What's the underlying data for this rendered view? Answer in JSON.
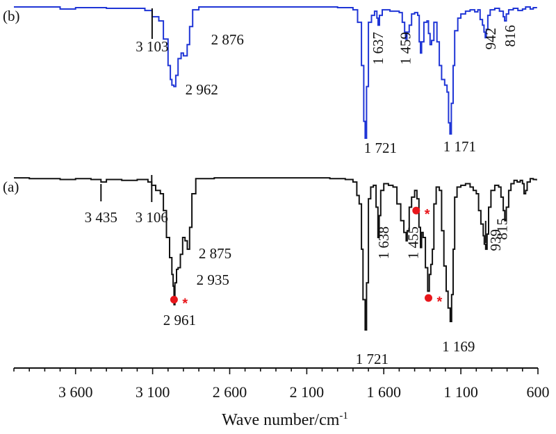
{
  "chart_data": {
    "type": "line",
    "xlabel": "Wave number/cm",
    "xlabel_sup": "-1",
    "x_reversed": true,
    "xlim": [
      4000,
      600
    ],
    "xticks": [
      {
        "value": 3600,
        "label": "3 600"
      },
      {
        "value": 3100,
        "label": "3 100"
      },
      {
        "value": 2600,
        "label": "2 600"
      },
      {
        "value": 2100,
        "label": "2 100"
      },
      {
        "value": 1600,
        "label": "1 600"
      },
      {
        "value": 1100,
        "label": "1 100"
      },
      {
        "value": 600,
        "label": "600"
      }
    ],
    "colors": {
      "b": "#1f35d6",
      "a": "#111111",
      "marker": "#e8161b"
    },
    "series": [
      {
        "name": "(b)",
        "key": "b",
        "ylim": [
          0,
          1
        ],
        "points": [
          [
            4000,
            0.97
          ],
          [
            3750,
            0.97
          ],
          [
            3700,
            0.955
          ],
          [
            3600,
            0.965
          ],
          [
            3400,
            0.96
          ],
          [
            3250,
            0.96
          ],
          [
            3150,
            0.945
          ],
          [
            3103,
            0.9
          ],
          [
            3060,
            0.87
          ],
          [
            3030,
            0.74
          ],
          [
            3000,
            0.55
          ],
          [
            2985,
            0.45
          ],
          [
            2975,
            0.41
          ],
          [
            2962,
            0.4
          ],
          [
            2950,
            0.48
          ],
          [
            2935,
            0.6
          ],
          [
            2915,
            0.64
          ],
          [
            2900,
            0.62
          ],
          [
            2876,
            0.7
          ],
          [
            2860,
            0.83
          ],
          [
            2840,
            0.95
          ],
          [
            2800,
            0.97
          ],
          [
            2200,
            0.97
          ],
          [
            1900,
            0.965
          ],
          [
            1800,
            0.95
          ],
          [
            1770,
            0.86
          ],
          [
            1745,
            0.55
          ],
          [
            1730,
            0.15
          ],
          [
            1721,
            0.03
          ],
          [
            1712,
            0.4
          ],
          [
            1700,
            0.86
          ],
          [
            1680,
            0.91
          ],
          [
            1660,
            0.94
          ],
          [
            1645,
            0.89
          ],
          [
            1637,
            0.84
          ],
          [
            1628,
            0.91
          ],
          [
            1610,
            0.95
          ],
          [
            1560,
            0.94
          ],
          [
            1500,
            0.93
          ],
          [
            1480,
            0.86
          ],
          [
            1465,
            0.79
          ],
          [
            1459,
            0.74
          ],
          [
            1450,
            0.79
          ],
          [
            1435,
            0.84
          ],
          [
            1420,
            0.92
          ],
          [
            1400,
            0.93
          ],
          [
            1380,
            0.91
          ],
          [
            1370,
            0.72
          ],
          [
            1362,
            0.64
          ],
          [
            1355,
            0.72
          ],
          [
            1340,
            0.86
          ],
          [
            1320,
            0.87
          ],
          [
            1310,
            0.78
          ],
          [
            1300,
            0.7
          ],
          [
            1290,
            0.73
          ],
          [
            1275,
            0.86
          ],
          [
            1255,
            0.72
          ],
          [
            1240,
            0.55
          ],
          [
            1225,
            0.45
          ],
          [
            1205,
            0.41
          ],
          [
            1190,
            0.36
          ],
          [
            1180,
            0.14
          ],
          [
            1171,
            0.06
          ],
          [
            1162,
            0.28
          ],
          [
            1150,
            0.55
          ],
          [
            1140,
            0.8
          ],
          [
            1120,
            0.89
          ],
          [
            1100,
            0.92
          ],
          [
            1070,
            0.94
          ],
          [
            1040,
            0.95
          ],
          [
            1010,
            0.935
          ],
          [
            990,
            0.95
          ],
          [
            975,
            0.88
          ],
          [
            960,
            0.84
          ],
          [
            950,
            0.79
          ],
          [
            942,
            0.75
          ],
          [
            935,
            0.81
          ],
          [
            925,
            0.91
          ],
          [
            910,
            0.95
          ],
          [
            880,
            0.96
          ],
          [
            850,
            0.94
          ],
          [
            825,
            0.9
          ],
          [
            816,
            0.87
          ],
          [
            805,
            0.92
          ],
          [
            790,
            0.95
          ],
          [
            760,
            0.96
          ],
          [
            730,
            0.945
          ],
          [
            700,
            0.955
          ],
          [
            680,
            0.97
          ],
          [
            650,
            0.955
          ],
          [
            630,
            0.965
          ],
          [
            610,
            0.96
          ]
        ]
      },
      {
        "name": "(a)",
        "key": "a",
        "ylim": [
          0,
          1
        ],
        "points": [
          [
            4000,
            0.975
          ],
          [
            3900,
            0.97
          ],
          [
            3800,
            0.97
          ],
          [
            3700,
            0.965
          ],
          [
            3600,
            0.97
          ],
          [
            3500,
            0.965
          ],
          [
            3435,
            0.95
          ],
          [
            3400,
            0.965
          ],
          [
            3300,
            0.96
          ],
          [
            3200,
            0.965
          ],
          [
            3130,
            0.95
          ],
          [
            3106,
            0.93
          ],
          [
            3080,
            0.9
          ],
          [
            3050,
            0.88
          ],
          [
            3030,
            0.78
          ],
          [
            3010,
            0.62
          ],
          [
            2990,
            0.5
          ],
          [
            2975,
            0.4
          ],
          [
            2967,
            0.33
          ],
          [
            2961,
            0.22
          ],
          [
            2955,
            0.35
          ],
          [
            2945,
            0.43
          ],
          [
            2935,
            0.44
          ],
          [
            2920,
            0.52
          ],
          [
            2905,
            0.62
          ],
          [
            2890,
            0.6
          ],
          [
            2875,
            0.55
          ],
          [
            2860,
            0.68
          ],
          [
            2845,
            0.88
          ],
          [
            2820,
            0.97
          ],
          [
            2700,
            0.975
          ],
          [
            2400,
            0.975
          ],
          [
            2100,
            0.975
          ],
          [
            1950,
            0.97
          ],
          [
            1850,
            0.965
          ],
          [
            1800,
            0.95
          ],
          [
            1775,
            0.87
          ],
          [
            1760,
            0.82
          ],
          [
            1745,
            0.55
          ],
          [
            1735,
            0.25
          ],
          [
            1721,
            0.07
          ],
          [
            1712,
            0.35
          ],
          [
            1700,
            0.85
          ],
          [
            1685,
            0.92
          ],
          [
            1668,
            0.93
          ],
          [
            1650,
            0.8
          ],
          [
            1638,
            0.62
          ],
          [
            1630,
            0.75
          ],
          [
            1620,
            0.9
          ],
          [
            1600,
            0.94
          ],
          [
            1570,
            0.93
          ],
          [
            1540,
            0.92
          ],
          [
            1515,
            0.82
          ],
          [
            1490,
            0.72
          ],
          [
            1470,
            0.65
          ],
          [
            1455,
            0.6
          ],
          [
            1448,
            0.66
          ],
          [
            1435,
            0.8
          ],
          [
            1420,
            0.86
          ],
          [
            1400,
            0.9
          ],
          [
            1385,
            0.85
          ],
          [
            1372,
            0.68
          ],
          [
            1362,
            0.56
          ],
          [
            1355,
            0.65
          ],
          [
            1345,
            0.62
          ],
          [
            1330,
            0.44
          ],
          [
            1315,
            0.3
          ],
          [
            1305,
            0.4
          ],
          [
            1295,
            0.46
          ],
          [
            1285,
            0.55
          ],
          [
            1275,
            0.82
          ],
          [
            1260,
            0.92
          ],
          [
            1240,
            0.9
          ],
          [
            1225,
            0.66
          ],
          [
            1210,
            0.45
          ],
          [
            1195,
            0.3
          ],
          [
            1183,
            0.2
          ],
          [
            1169,
            0.12
          ],
          [
            1160,
            0.28
          ],
          [
            1150,
            0.55
          ],
          [
            1140,
            0.86
          ],
          [
            1125,
            0.92
          ],
          [
            1100,
            0.93
          ],
          [
            1070,
            0.94
          ],
          [
            1040,
            0.92
          ],
          [
            1020,
            0.9
          ],
          [
            1000,
            0.88
          ],
          [
            985,
            0.78
          ],
          [
            970,
            0.7
          ],
          [
            955,
            0.63
          ],
          [
            948,
            0.58
          ],
          [
            939,
            0.55
          ],
          [
            930,
            0.64
          ],
          [
            920,
            0.8
          ],
          [
            905,
            0.9
          ],
          [
            880,
            0.93
          ],
          [
            855,
            0.92
          ],
          [
            840,
            0.86
          ],
          [
            825,
            0.78
          ],
          [
            815,
            0.72
          ],
          [
            805,
            0.8
          ],
          [
            790,
            0.9
          ],
          [
            775,
            0.94
          ],
          [
            755,
            0.96
          ],
          [
            735,
            0.95
          ],
          [
            715,
            0.96
          ],
          [
            700,
            0.94
          ],
          [
            690,
            0.88
          ],
          [
            680,
            0.9
          ],
          [
            670,
            0.95
          ],
          [
            650,
            0.97
          ],
          [
            630,
            0.965
          ],
          [
            610,
            0.96
          ]
        ]
      }
    ],
    "peak_labels": [
      {
        "series": "b",
        "text": "3 103",
        "x": 3103,
        "rotate": false,
        "leader": true
      },
      {
        "series": "b",
        "text": "2 876",
        "x": 2876,
        "rotate": false,
        "leader": false
      },
      {
        "series": "b",
        "text": "2 962",
        "x": 2962,
        "rotate": false,
        "leader": false
      },
      {
        "series": "b",
        "text": "1 637",
        "x": 1637,
        "rotate": true,
        "leader": false
      },
      {
        "series": "b",
        "text": "1 459",
        "x": 1459,
        "rotate": true,
        "leader": false
      },
      {
        "series": "b",
        "text": "942",
        "x": 942,
        "rotate": true,
        "leader": false
      },
      {
        "series": "b",
        "text": "816",
        "x": 816,
        "rotate": true,
        "leader": false
      },
      {
        "series": "b",
        "text": "1 721",
        "x": 1721,
        "rotate": false,
        "leader": false
      },
      {
        "series": "b",
        "text": "1 171",
        "x": 1171,
        "rotate": false,
        "leader": false
      },
      {
        "series": "a",
        "text": "3 435",
        "x": 3435,
        "rotate": false,
        "leader": true
      },
      {
        "series": "a",
        "text": "3 106",
        "x": 3106,
        "rotate": false,
        "leader": true
      },
      {
        "series": "a",
        "text": "2 875",
        "x": 2875,
        "rotate": false,
        "leader": false
      },
      {
        "series": "a",
        "text": "2 935",
        "x": 2935,
        "rotate": false,
        "leader": false
      },
      {
        "series": "a",
        "text": "2 961",
        "x": 2961,
        "rotate": false,
        "leader": false
      },
      {
        "series": "a",
        "text": "1 638",
        "x": 1638,
        "rotate": true,
        "leader": false
      },
      {
        "series": "a",
        "text": "1 455",
        "x": 1455,
        "rotate": true,
        "leader": false
      },
      {
        "series": "a",
        "text": "939",
        "x": 939,
        "rotate": true,
        "leader": true
      },
      {
        "series": "a",
        "text": "815",
        "x": 815,
        "rotate": true,
        "leader": false
      },
      {
        "series": "a",
        "text": "1 721",
        "x": 1721,
        "rotate": false,
        "leader": false
      },
      {
        "series": "a",
        "text": "1 169",
        "x": 1169,
        "rotate": false,
        "leader": false
      }
    ],
    "markers": [
      {
        "x": 2961,
        "y": 0.25,
        "symbol": "*"
      },
      {
        "x": 1390,
        "y": 0.78,
        "symbol": "*"
      },
      {
        "x": 1310,
        "y": 0.26,
        "symbol": "*"
      }
    ]
  }
}
